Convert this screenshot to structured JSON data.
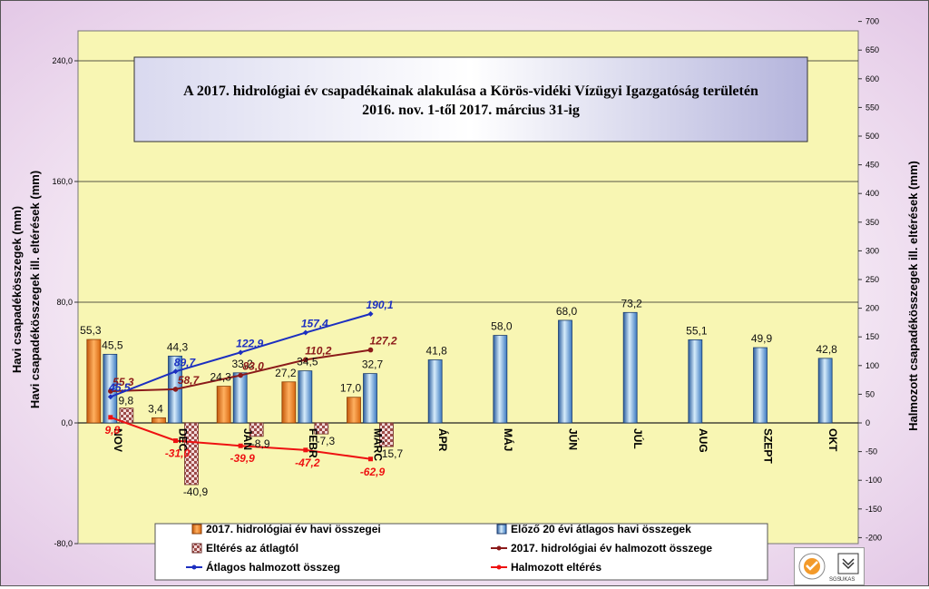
{
  "chart_data": {
    "type": "bar",
    "title_line1": "A 2017. hidrológiai év csapadékainak alakulása a Körös-vidéki Vízügyi Igazgatóság területén",
    "title_line2": "2016. nov. 1-től 2017. március 31-ig",
    "ylabel_left_1": "Havi csapadékösszegek (mm)",
    "ylabel_left_2": "Havi csapadékösszegek ill. eltérések (mm)",
    "ylabel_right": "Halmozott csapadékösszegek ill. eltérések (mm)",
    "ylim_left": [
      -80,
      320
    ],
    "yticks_left": [
      "240,0",
      "160,0",
      "80,0",
      "0,0",
      "-80,0"
    ],
    "ylim_right": [
      -200,
      700
    ],
    "yticks_right": [
      "700",
      "650",
      "600",
      "550",
      "500",
      "450",
      "400",
      "350",
      "300",
      "250",
      "200",
      "150",
      "100",
      "50",
      "0",
      "-50",
      "-100",
      "-150",
      "-200"
    ],
    "grid": true,
    "categories": [
      "NOV",
      "DEC",
      "JAN",
      "FEBR",
      "MÁRC",
      "ÁPR",
      "MÁJ",
      "JÚN",
      "JÚL",
      "AUG",
      "SZEPT",
      "OKT"
    ],
    "bar_series": [
      {
        "name": "2017. hidrológiai év havi összegei",
        "color": "#f08a1e",
        "values": [
          55.3,
          3.4,
          24.3,
          27.2,
          17.0,
          null,
          null,
          null,
          null,
          null,
          null,
          null
        ],
        "labels": [
          "55,3",
          "3,4",
          "24,3",
          "27,2",
          "17,0"
        ]
      },
      {
        "name": "Előző 20 évi átlagos havi összegek",
        "color": "#7fbfe8",
        "values": [
          45.5,
          44.3,
          33.2,
          34.5,
          32.7,
          41.8,
          58.0,
          68.0,
          73.2,
          55.1,
          49.9,
          42.8
        ],
        "labels": [
          "45,5",
          "44,3",
          "33,2",
          "34,5",
          "32,7",
          "41,8",
          "58,0",
          "68,0",
          "73,2",
          "55,1",
          "49,9",
          "42,8"
        ]
      },
      {
        "name": "Eltérés az átlagtól",
        "color": "#a0524d",
        "values": [
          9.8,
          -40.9,
          -8.9,
          -7.3,
          -15.7,
          null,
          null,
          null,
          null,
          null,
          null,
          null
        ],
        "labels": [
          "9,8",
          "-40,9",
          "-8,9",
          "-7,3",
          "-15,7"
        ]
      }
    ],
    "line_series": [
      {
        "name": "2017. hidrológiai év halmozott összege",
        "color": "#8b1a1a",
        "values": [
          55.3,
          58.7,
          83.0,
          110.2,
          127.2
        ],
        "labels": [
          "55,3",
          "58,7",
          "83,0",
          "110,2",
          "127,2"
        ]
      },
      {
        "name": "Átlagos halmozott összeg",
        "color": "#1c2fc0",
        "values": [
          45.5,
          89.7,
          122.9,
          157.4,
          190.1
        ],
        "labels": [
          "45,5",
          "89,7",
          "122,9",
          "157,4",
          "190,1"
        ]
      },
      {
        "name": "Halmozott eltérés",
        "color": "#ee1111",
        "values": [
          9.8,
          -31.0,
          -39.9,
          -47.2,
          -62.9
        ],
        "labels": [
          "9,8",
          "-31,0",
          "-39,9",
          "-47,2",
          "-62,9"
        ]
      }
    ],
    "legend": [
      "2017. hidrológiai év havi összegei",
      "Előző 20 évi átlagos havi összegek",
      "Eltérés az átlagtól",
      "2017. hidrológiai év halmozott összege",
      "Átlagos halmozott összeg",
      "Halmozott eltérés"
    ],
    "legend_position": "bottom"
  },
  "logos": {
    "sgs": "SGS",
    "ukas": "UKAS"
  }
}
